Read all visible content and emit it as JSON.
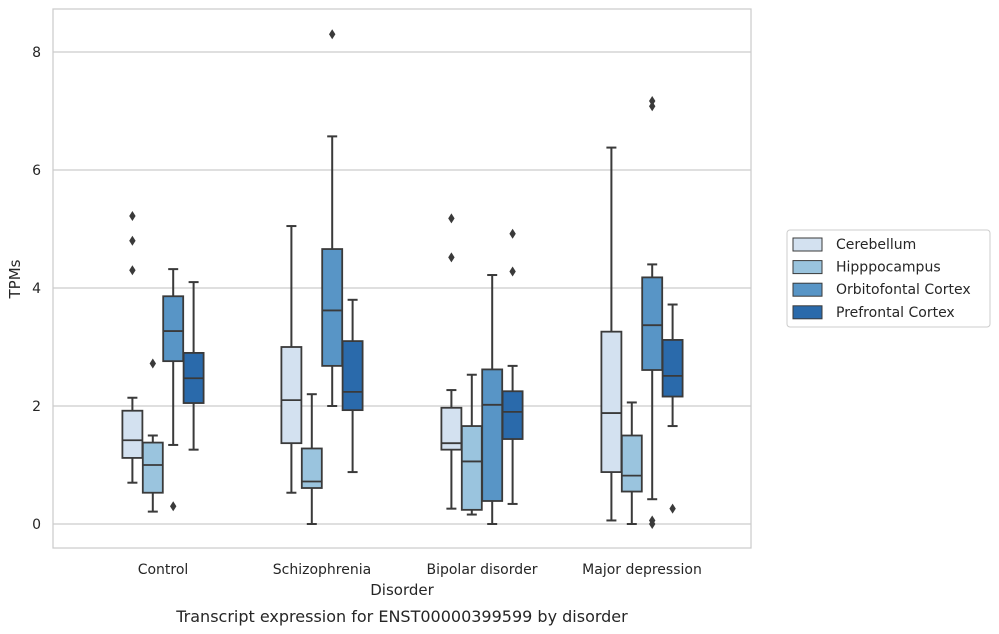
{
  "chart_data": {
    "type": "box",
    "title": "",
    "caption": "Transcript expression for ENST00000399599 by disorder",
    "xlabel": "Disorder",
    "ylabel": "TPMs",
    "ylim": [
      -0.4,
      8.7
    ],
    "yticks": [
      0,
      2,
      4,
      6,
      8
    ],
    "grid": "horizontal",
    "legend_position": "right",
    "categories": [
      "Control",
      "Schizophrenia",
      "Bipolar disorder",
      "Major depression"
    ],
    "series": [
      {
        "name": "Cerebellum",
        "color": "#d3e1f0",
        "boxes": [
          {
            "whisker_low": 0.7,
            "q1": 1.12,
            "median": 1.42,
            "q3": 1.92,
            "whisker_high": 2.14,
            "outliers": [
              4.3,
              4.8,
              5.22
            ]
          },
          {
            "whisker_low": 0.53,
            "q1": 1.37,
            "median": 2.1,
            "q3": 3.0,
            "whisker_high": 5.05,
            "outliers": []
          },
          {
            "whisker_low": 0.26,
            "q1": 1.26,
            "median": 1.37,
            "q3": 1.97,
            "whisker_high": 2.27,
            "outliers": [
              4.52,
              5.18
            ]
          },
          {
            "whisker_low": 0.06,
            "q1": 0.88,
            "median": 1.88,
            "q3": 3.26,
            "whisker_high": 6.38,
            "outliers": []
          }
        ]
      },
      {
        "name": "Hipppocampus",
        "color": "#9ac4de",
        "boxes": [
          {
            "whisker_low": 0.21,
            "q1": 0.53,
            "median": 1.0,
            "q3": 1.38,
            "whisker_high": 1.5,
            "outliers": [
              2.72
            ]
          },
          {
            "whisker_low": 0.0,
            "q1": 0.61,
            "median": 0.72,
            "q3": 1.28,
            "whisker_high": 2.2,
            "outliers": []
          },
          {
            "whisker_low": 0.16,
            "q1": 0.24,
            "median": 1.06,
            "q3": 1.66,
            "whisker_high": 2.53,
            "outliers": []
          },
          {
            "whisker_low": 0.0,
            "q1": 0.55,
            "median": 0.82,
            "q3": 1.5,
            "whisker_high": 2.06,
            "outliers": []
          }
        ]
      },
      {
        "name": "Orbitofontal Cortex",
        "color": "#5895c6",
        "boxes": [
          {
            "whisker_low": 1.34,
            "q1": 2.76,
            "median": 3.27,
            "q3": 3.86,
            "whisker_high": 4.32,
            "outliers": [
              0.3
            ]
          },
          {
            "whisker_low": 2.0,
            "q1": 2.68,
            "median": 3.62,
            "q3": 4.66,
            "whisker_high": 6.57,
            "outliers": [
              8.3
            ]
          },
          {
            "whisker_low": 0.0,
            "q1": 0.39,
            "median": 2.02,
            "q3": 2.62,
            "whisker_high": 4.22,
            "outliers": []
          },
          {
            "whisker_low": 0.42,
            "q1": 2.61,
            "median": 3.37,
            "q3": 4.18,
            "whisker_high": 4.4,
            "outliers": [
              0.0,
              0.06,
              7.08,
              7.17
            ]
          }
        ]
      },
      {
        "name": "Prefrontal Cortex",
        "color": "#2a6aab",
        "boxes": [
          {
            "whisker_low": 1.26,
            "q1": 2.05,
            "median": 2.47,
            "q3": 2.9,
            "whisker_high": 4.1,
            "outliers": []
          },
          {
            "whisker_low": 0.88,
            "q1": 1.93,
            "median": 2.24,
            "q3": 3.1,
            "whisker_high": 3.8,
            "outliers": []
          },
          {
            "whisker_low": 0.34,
            "q1": 1.44,
            "median": 1.9,
            "q3": 2.25,
            "whisker_high": 2.68,
            "outliers": [
              4.28,
              4.92
            ]
          },
          {
            "whisker_low": 1.66,
            "q1": 2.16,
            "median": 2.51,
            "q3": 3.12,
            "whisker_high": 3.72,
            "outliers": [
              0.26
            ]
          }
        ]
      }
    ]
  }
}
